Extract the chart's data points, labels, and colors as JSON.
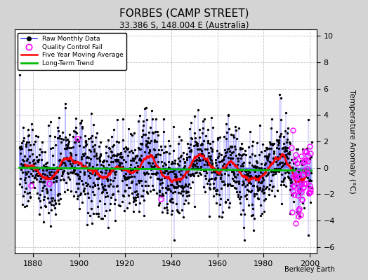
{
  "title": "FORBES (CAMP STREET)",
  "subtitle": "33.386 S, 148.004 E (Australia)",
  "ylabel": "Temperature Anomaly (°C)",
  "xlabel_ticks": [
    1880,
    1900,
    1920,
    1940,
    1960,
    1980,
    2000
  ],
  "ylim": [
    -6.5,
    10.5
  ],
  "xlim": [
    1872,
    2003
  ],
  "yticks": [
    -6,
    -4,
    -2,
    0,
    2,
    4,
    6,
    8,
    10
  ],
  "fig_bg_color": "#d4d4d4",
  "plot_bg_color": "#ffffff",
  "grid_color": "#c0c0c0",
  "raw_line_color": "#4444ff",
  "raw_marker_color": "#000000",
  "moving_avg_color": "#ff0000",
  "trend_color": "#00bb00",
  "qc_fail_color": "#ff00ff",
  "watermark": "Berkeley Earth",
  "seed": 137,
  "start_year": 1874,
  "end_year": 2000,
  "noise_std": 1.6,
  "trend_slope": -0.002
}
